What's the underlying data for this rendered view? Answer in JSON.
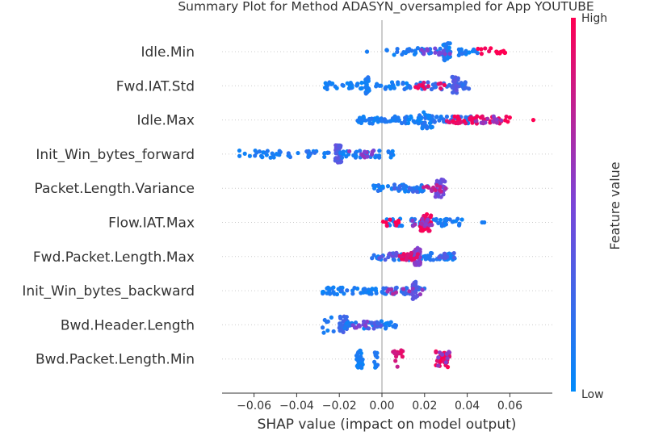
{
  "chart_data": {
    "type": "scatter",
    "title": "Summary Plot for Method ADASYN_oversampled for App YOUTUBE",
    "xlabel": "SHAP value (impact on model output)",
    "xlim": [
      -0.07,
      0.077
    ],
    "x_ticks": [
      "−0.06",
      "−0.04",
      "−0.02",
      "0.00",
      "0.02",
      "0.04",
      "0.06"
    ],
    "x_tick_values": [
      -0.06,
      -0.04,
      -0.02,
      0.0,
      0.02,
      0.04,
      0.06
    ],
    "colorbar": {
      "label": "Feature value",
      "high": "High",
      "low": "Low",
      "low_color": "#008bfb",
      "high_color": "#ff0052"
    },
    "features": [
      {
        "name": "Idle.Min",
        "clusters": [
          {
            "range": [
              0.002,
              0.045
            ],
            "n": 55,
            "value": 0.1
          },
          {
            "range": [
              0.028,
              0.032
            ],
            "n": 30,
            "value": 0.1
          },
          {
            "range": [
              0.018,
              0.032
            ],
            "n": 14,
            "value": 0.5
          },
          {
            "range": [
              0.045,
              0.058
            ],
            "n": 16,
            "value": 1.0
          },
          {
            "point": -0.007,
            "value": 0.1
          }
        ]
      },
      {
        "name": "Fwd.IAT.Std",
        "clusters": [
          {
            "range": [
              -0.027,
              0.014
            ],
            "n": 60,
            "value": 0.1
          },
          {
            "range": [
              -0.008,
              -0.006
            ],
            "n": 18,
            "value": 0.1
          },
          {
            "range": [
              0.016,
              0.041
            ],
            "n": 40,
            "value": 0.2
          },
          {
            "range": [
              0.033,
              0.036
            ],
            "n": 30,
            "value": 0.35
          },
          {
            "range": [
              0.015,
              0.032
            ],
            "n": 12,
            "value": 0.9
          }
        ]
      },
      {
        "name": "Idle.Max",
        "clusters": [
          {
            "range": [
              -0.012,
              0.018
            ],
            "n": 60,
            "value": 0.1
          },
          {
            "range": [
              0.017,
              0.024
            ],
            "n": 45,
            "value": 0.1
          },
          {
            "range": [
              0.024,
              0.044
            ],
            "n": 35,
            "value": 0.15
          },
          {
            "range": [
              0.03,
              0.06
            ],
            "n": 45,
            "value": 0.95
          },
          {
            "range": [
              0.044,
              0.056
            ],
            "n": 14,
            "value": 0.6
          },
          {
            "point": 0.071,
            "value": 1.0
          }
        ]
      },
      {
        "name": "Init_Win_bytes_forward",
        "clusters": [
          {
            "range": [
              -0.067,
              -0.038
            ],
            "n": 30,
            "value": 0.1
          },
          {
            "range": [
              -0.036,
              -0.024
            ],
            "n": 16,
            "value": 0.15
          },
          {
            "range": [
              -0.022,
              -0.019
            ],
            "n": 40,
            "value": 0.35
          },
          {
            "range": [
              -0.02,
              0.006
            ],
            "n": 40,
            "value": 0.1
          },
          {
            "range": [
              -0.016,
              -0.002
            ],
            "n": 12,
            "value": 0.55
          }
        ]
      },
      {
        "name": "Packet.Length.Variance",
        "clusters": [
          {
            "range": [
              -0.004,
              0.022
            ],
            "n": 50,
            "value": 0.1
          },
          {
            "range": [
              0.025,
              0.03
            ],
            "n": 30,
            "value": 0.45
          },
          {
            "range": [
              0.019,
              0.03
            ],
            "n": 12,
            "value": 0.75
          },
          {
            "range": [
              0.005,
              0.02
            ],
            "n": 8,
            "value": 0.25
          }
        ]
      },
      {
        "name": "Flow.IAT.Max",
        "clusters": [
          {
            "range": [
              0.002,
              0.038
            ],
            "n": 55,
            "value": 0.1
          },
          {
            "range": [
              0.018,
              0.023
            ],
            "n": 35,
            "value": 0.95
          },
          {
            "range": [
              0.0,
              0.008
            ],
            "n": 8,
            "value": 1.0
          },
          {
            "range": [
              0.011,
              0.024
            ],
            "n": 14,
            "value": 0.6
          },
          {
            "point": 0.048,
            "value": 0.1
          },
          {
            "point": 0.047,
            "value": 0.1
          }
        ]
      },
      {
        "name": "Fwd.Packet.Length.Max",
        "clusters": [
          {
            "range": [
              -0.006,
              0.035
            ],
            "n": 65,
            "value": 0.1
          },
          {
            "range": [
              0.015,
              0.018
            ],
            "n": 35,
            "value": 0.55
          },
          {
            "range": [
              0.008,
              0.017
            ],
            "n": 22,
            "value": 0.9
          },
          {
            "range": [
              -0.002,
              0.01
            ],
            "n": 10,
            "value": 0.4
          },
          {
            "range": [
              0.026,
              0.035
            ],
            "n": 8,
            "value": 0.3
          }
        ]
      },
      {
        "name": "Init_Win_bytes_backward",
        "clusters": [
          {
            "range": [
              -0.03,
              -0.016
            ],
            "n": 25,
            "value": 0.1
          },
          {
            "range": [
              -0.014,
              -0.002
            ],
            "n": 22,
            "value": 0.1
          },
          {
            "range": [
              0.0,
              0.02
            ],
            "n": 35,
            "value": 0.2
          },
          {
            "range": [
              0.014,
              0.017
            ],
            "n": 30,
            "value": 0.35
          },
          {
            "range": [
              0.002,
              0.02
            ],
            "n": 10,
            "value": 0.65
          }
        ]
      },
      {
        "name": "Bwd.Header.Length",
        "clusters": [
          {
            "range": [
              -0.028,
              -0.022
            ],
            "n": 8,
            "value": 0.1
          },
          {
            "range": [
              -0.02,
              -0.016
            ],
            "n": 30,
            "value": 0.25
          },
          {
            "range": [
              -0.02,
              0.007
            ],
            "n": 35,
            "value": 0.1
          },
          {
            "range": [
              -0.008,
              0.0
            ],
            "n": 16,
            "value": 0.3
          },
          {
            "range": [
              -0.014,
              -0.006
            ],
            "n": 10,
            "value": 0.5
          }
        ]
      },
      {
        "name": "Bwd.Packet.Length.Min",
        "clusters": [
          {
            "range": [
              -0.012,
              -0.009
            ],
            "n": 30,
            "value": 0.1
          },
          {
            "range": [
              -0.004,
              -0.002
            ],
            "n": 10,
            "value": 0.1
          },
          {
            "range": [
              0.005,
              0.01
            ],
            "n": 14,
            "value": 0.85
          },
          {
            "range": [
              0.025,
              0.032
            ],
            "n": 30,
            "value": 0.95
          },
          {
            "range": [
              0.026,
              0.032
            ],
            "n": 10,
            "value": 0.6
          }
        ]
      }
    ]
  }
}
